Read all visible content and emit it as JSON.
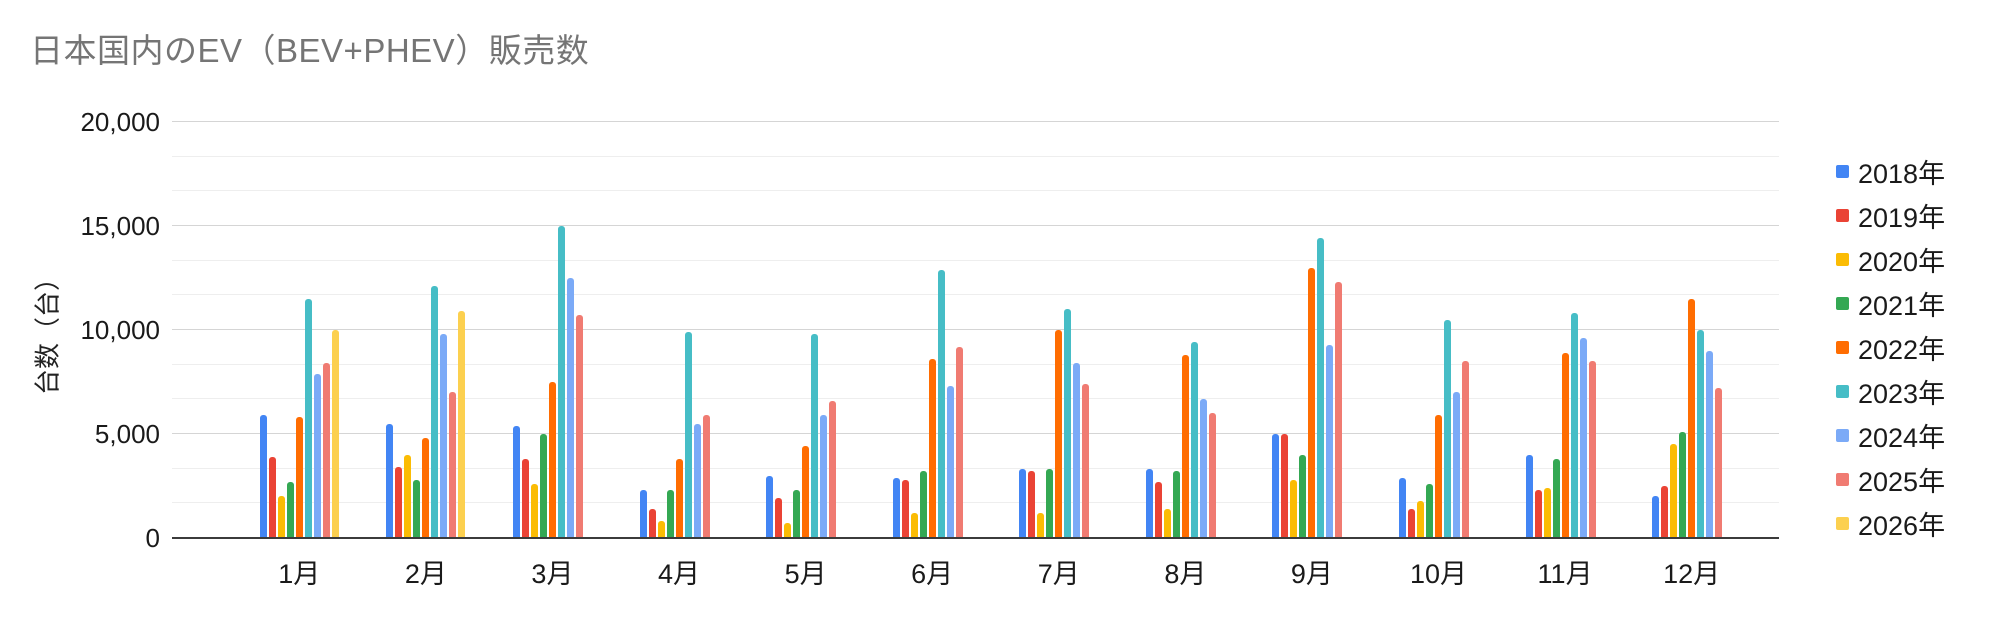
{
  "chart_data": {
    "type": "bar",
    "title": "日本国内のEV（BEV+PHEV）販売数",
    "ylabel": "台数（台）",
    "xlabel": "",
    "ylim": [
      0,
      20000
    ],
    "ytick_values": [
      0,
      5000,
      10000,
      15000,
      20000
    ],
    "ytick_labels": [
      "0",
      "5,000",
      "10,000",
      "15,000",
      "20,000"
    ],
    "minor_grid_step": 1667,
    "grid": "horizontal major+minor",
    "legend_position": "right",
    "background": "#ffffff",
    "categories": [
      "1月",
      "2月",
      "3月",
      "4月",
      "5月",
      "6月",
      "7月",
      "8月",
      "9月",
      "10月",
      "11月",
      "12月"
    ],
    "series": [
      {
        "name": "2018年",
        "color": "#4285F4",
        "values": [
          5900,
          5500,
          5400,
          2300,
          3000,
          2900,
          3300,
          3300,
          5000,
          2900,
          4000,
          2000
        ]
      },
      {
        "name": "2019年",
        "color": "#EA4335",
        "values": [
          3900,
          3400,
          3800,
          1400,
          1900,
          2800,
          3200,
          2700,
          5000,
          1400,
          2300,
          2500
        ]
      },
      {
        "name": "2020年",
        "color": "#FBBC04",
        "values": [
          2000,
          4000,
          2600,
          800,
          700,
          1200,
          1200,
          1400,
          2800,
          1800,
          2400,
          4500
        ]
      },
      {
        "name": "2021年",
        "color": "#34A853",
        "values": [
          2700,
          2800,
          5000,
          2300,
          2300,
          3200,
          3300,
          3200,
          4000,
          2600,
          3800,
          5100
        ]
      },
      {
        "name": "2022年",
        "color": "#FF6D01",
        "values": [
          5800,
          4800,
          7500,
          3800,
          4400,
          8600,
          10000,
          8800,
          13000,
          5900,
          8900,
          11500
        ]
      },
      {
        "name": "2023年",
        "color": "#46BDC6",
        "values": [
          11500,
          12100,
          15000,
          9900,
          9800,
          12900,
          11000,
          9400,
          14400,
          10500,
          10800,
          10000
        ]
      },
      {
        "name": "2024年",
        "color": "#7BAAF7",
        "values": [
          7900,
          9800,
          12500,
          5500,
          5900,
          7300,
          8400,
          6700,
          9300,
          7000,
          9600,
          9000
        ]
      },
      {
        "name": "2025年",
        "color": "#F07B72",
        "values": [
          8400,
          7000,
          10700,
          5900,
          6600,
          9200,
          7400,
          6000,
          12300,
          8500,
          8500,
          7200
        ]
      },
      {
        "name": "2026年",
        "color": "#FCD04F",
        "values": [
          10000,
          10900,
          null,
          null,
          null,
          null,
          null,
          null,
          null,
          null,
          null,
          null
        ]
      }
    ]
  }
}
